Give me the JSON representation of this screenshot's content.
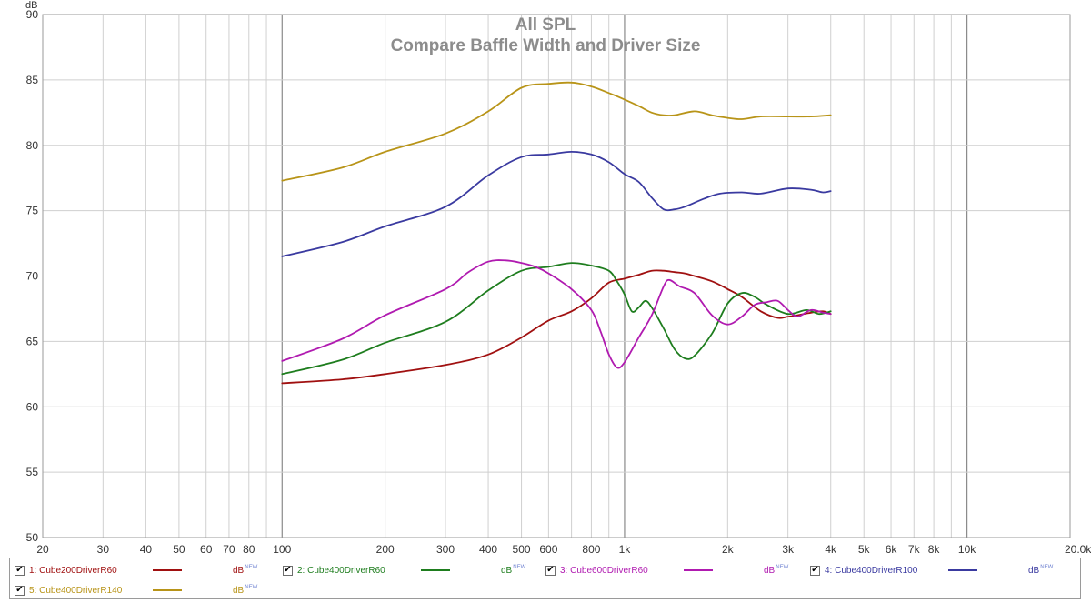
{
  "chart_data": {
    "type": "line",
    "title": "All SPL",
    "subtitle": "Compare Baffle Width and Driver Size",
    "ylabel": "dB",
    "xlabel": "",
    "x_scale": "log",
    "xlim": [
      20,
      20000
    ],
    "ylim": [
      50,
      90
    ],
    "y_ticks": [
      "50",
      "55",
      "60",
      "65",
      "70",
      "75",
      "80",
      "85",
      "90"
    ],
    "x_ticks": [
      {
        "value": 20,
        "label": "20"
      },
      {
        "value": 30,
        "label": "30"
      },
      {
        "value": 40,
        "label": "40"
      },
      {
        "value": 50,
        "label": "50"
      },
      {
        "value": 60,
        "label": "60"
      },
      {
        "value": 70,
        "label": "70"
      },
      {
        "value": 80,
        "label": "80"
      },
      {
        "value": 100,
        "label": "100"
      },
      {
        "value": 200,
        "label": "200"
      },
      {
        "value": 300,
        "label": "300"
      },
      {
        "value": 400,
        "label": "400"
      },
      {
        "value": 500,
        "label": "500"
      },
      {
        "value": 600,
        "label": "600"
      },
      {
        "value": 800,
        "label": "800"
      },
      {
        "value": 1000,
        "label": "1k"
      },
      {
        "value": 2000,
        "label": "2k"
      },
      {
        "value": 3000,
        "label": "3k"
      },
      {
        "value": 4000,
        "label": "4k"
      },
      {
        "value": 5000,
        "label": "5k"
      },
      {
        "value": 6000,
        "label": "6k"
      },
      {
        "value": 7000,
        "label": "7k"
      },
      {
        "value": 8000,
        "label": "8k"
      },
      {
        "value": 10000,
        "label": "10k"
      },
      {
        "value": 20000,
        "label": "20.0kHz"
      }
    ],
    "grid": true,
    "series": [
      {
        "name": "1: Cube200DriverR60",
        "color": "#a01010",
        "points": [
          [
            100,
            61.8
          ],
          [
            150,
            62.1
          ],
          [
            200,
            62.5
          ],
          [
            300,
            63.2
          ],
          [
            400,
            64.0
          ],
          [
            500,
            65.3
          ],
          [
            600,
            66.6
          ],
          [
            700,
            67.3
          ],
          [
            800,
            68.3
          ],
          [
            900,
            69.5
          ],
          [
            1000,
            69.8
          ],
          [
            1100,
            70.1
          ],
          [
            1200,
            70.4
          ],
          [
            1300,
            70.4
          ],
          [
            1400,
            70.3
          ],
          [
            1500,
            70.2
          ],
          [
            1600,
            70.0
          ],
          [
            1800,
            69.6
          ],
          [
            2000,
            69.0
          ],
          [
            2200,
            68.4
          ],
          [
            2500,
            67.3
          ],
          [
            2800,
            66.8
          ],
          [
            3000,
            66.9
          ],
          [
            3200,
            67.0
          ],
          [
            3500,
            67.2
          ],
          [
            3800,
            67.3
          ],
          [
            4000,
            67.1
          ]
        ]
      },
      {
        "name": "2: Cube400DriverR60",
        "color": "#1e7d1e",
        "points": [
          [
            100,
            62.5
          ],
          [
            150,
            63.6
          ],
          [
            200,
            64.9
          ],
          [
            300,
            66.5
          ],
          [
            400,
            68.9
          ],
          [
            500,
            70.4
          ],
          [
            600,
            70.7
          ],
          [
            700,
            71.0
          ],
          [
            800,
            70.8
          ],
          [
            900,
            70.4
          ],
          [
            950,
            69.6
          ],
          [
            1000,
            68.6
          ],
          [
            1050,
            67.3
          ],
          [
            1100,
            67.6
          ],
          [
            1150,
            68.1
          ],
          [
            1200,
            67.6
          ],
          [
            1300,
            66.0
          ],
          [
            1400,
            64.4
          ],
          [
            1500,
            63.7
          ],
          [
            1600,
            63.9
          ],
          [
            1800,
            65.6
          ],
          [
            2000,
            67.9
          ],
          [
            2200,
            68.7
          ],
          [
            2400,
            68.4
          ],
          [
            2600,
            67.8
          ],
          [
            3000,
            67.1
          ],
          [
            3400,
            67.4
          ],
          [
            3700,
            67.1
          ],
          [
            4000,
            67.3
          ]
        ]
      },
      {
        "name": "3: Cube600DriverR60",
        "color": "#b01ab0",
        "points": [
          [
            100,
            63.5
          ],
          [
            150,
            65.2
          ],
          [
            200,
            67.0
          ],
          [
            300,
            69.0
          ],
          [
            350,
            70.3
          ],
          [
            400,
            71.1
          ],
          [
            450,
            71.2
          ],
          [
            500,
            71.0
          ],
          [
            550,
            70.7
          ],
          [
            600,
            70.2
          ],
          [
            700,
            69.0
          ],
          [
            800,
            67.4
          ],
          [
            850,
            65.8
          ],
          [
            900,
            64.0
          ],
          [
            950,
            63.0
          ],
          [
            1000,
            63.4
          ],
          [
            1100,
            65.3
          ],
          [
            1200,
            67.0
          ],
          [
            1300,
            69.2
          ],
          [
            1350,
            69.7
          ],
          [
            1450,
            69.2
          ],
          [
            1600,
            68.7
          ],
          [
            1800,
            67.0
          ],
          [
            2000,
            66.3
          ],
          [
            2200,
            66.9
          ],
          [
            2400,
            67.8
          ],
          [
            2600,
            68.0
          ],
          [
            2800,
            68.1
          ],
          [
            3000,
            67.4
          ],
          [
            3200,
            66.9
          ],
          [
            3500,
            67.4
          ],
          [
            3800,
            67.2
          ],
          [
            4000,
            67.1
          ]
        ]
      },
      {
        "name": "4: Cube400DriverR100",
        "color": "#3a3aa0",
        "points": [
          [
            100,
            71.5
          ],
          [
            150,
            72.6
          ],
          [
            200,
            73.8
          ],
          [
            300,
            75.3
          ],
          [
            400,
            77.7
          ],
          [
            500,
            79.1
          ],
          [
            600,
            79.3
          ],
          [
            700,
            79.5
          ],
          [
            800,
            79.3
          ],
          [
            900,
            78.7
          ],
          [
            1000,
            77.8
          ],
          [
            1100,
            77.2
          ],
          [
            1200,
            76.0
          ],
          [
            1300,
            75.1
          ],
          [
            1400,
            75.1
          ],
          [
            1500,
            75.3
          ],
          [
            1700,
            75.9
          ],
          [
            1900,
            76.3
          ],
          [
            2200,
            76.4
          ],
          [
            2500,
            76.3
          ],
          [
            3000,
            76.7
          ],
          [
            3500,
            76.6
          ],
          [
            3800,
            76.4
          ],
          [
            4000,
            76.5
          ]
        ]
      },
      {
        "name": "5: Cube400DriverR140",
        "color": "#b89418",
        "points": [
          [
            100,
            77.3
          ],
          [
            150,
            78.3
          ],
          [
            200,
            79.5
          ],
          [
            300,
            80.9
          ],
          [
            400,
            82.6
          ],
          [
            500,
            84.4
          ],
          [
            600,
            84.7
          ],
          [
            700,
            84.8
          ],
          [
            800,
            84.5
          ],
          [
            900,
            84.0
          ],
          [
            1000,
            83.5
          ],
          [
            1100,
            83.0
          ],
          [
            1200,
            82.5
          ],
          [
            1300,
            82.3
          ],
          [
            1400,
            82.3
          ],
          [
            1600,
            82.6
          ],
          [
            1800,
            82.3
          ],
          [
            2000,
            82.1
          ],
          [
            2200,
            82.0
          ],
          [
            2500,
            82.2
          ],
          [
            3000,
            82.2
          ],
          [
            3500,
            82.2
          ],
          [
            4000,
            82.3
          ]
        ]
      }
    ]
  },
  "legend": {
    "items": [
      {
        "label": "1: Cube200DriverR60",
        "unit": "dB",
        "tag": "NEW",
        "color": "#a01010",
        "checked": true
      },
      {
        "label": "2: Cube400DriverR60",
        "unit": "dB",
        "tag": "NEW",
        "color": "#1e7d1e",
        "checked": true
      },
      {
        "label": "3: Cube600DriverR60",
        "unit": "dB",
        "tag": "NEW",
        "color": "#b01ab0",
        "checked": true
      },
      {
        "label": "4: Cube400DriverR100",
        "unit": "dB",
        "tag": "NEW",
        "color": "#3a3aa0",
        "checked": true
      },
      {
        "label": "5: Cube400DriverR140",
        "unit": "dB",
        "tag": "NEW",
        "color": "#b89418",
        "checked": true
      }
    ]
  }
}
